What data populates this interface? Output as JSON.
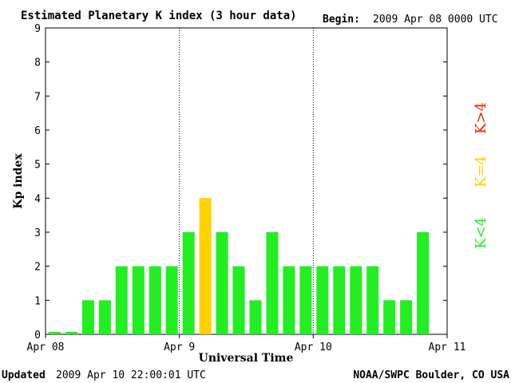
{
  "header": {
    "title": "Estimated Planetary K index (3 hour data)",
    "begin_label": "Begin:",
    "begin_value": "2009 Apr 08 0000 UTC"
  },
  "footer": {
    "updated_label": "Updated",
    "updated_value": "2009 Apr 10 22:00:01 UTC",
    "source": "NOAA/SWPC Boulder, CO USA"
  },
  "legend": [
    {
      "label": "K<4",
      "color": "#22ee22"
    },
    {
      "label": "K=4",
      "color": "#ffd200"
    },
    {
      "label": "K>4",
      "color": "#ee2200"
    }
  ],
  "colors": {
    "low": "#22ee22",
    "mid": "#ffd200",
    "high": "#ee2200",
    "axis": "#000000"
  },
  "chart_data": {
    "type": "bar",
    "title": "Estimated Planetary K index (3 hour data)",
    "xlabel": "Universal Time",
    "ylabel": "Kp index",
    "ylim": [
      0,
      9
    ],
    "yticks": [
      "0",
      "1",
      "2",
      "3",
      "4",
      "5",
      "6",
      "7",
      "8",
      "9"
    ],
    "xticks": [
      "Apr 08",
      "Apr 9",
      "Apr 10",
      "Apr 11"
    ],
    "grid": "dotted vertical day separators",
    "interval_hours": 3,
    "values": [
      0,
      0,
      1,
      1,
      2,
      2,
      2,
      2,
      3,
      4,
      3,
      2,
      1,
      3,
      2,
      2,
      2,
      2,
      2,
      2,
      1,
      1,
      3
    ]
  }
}
